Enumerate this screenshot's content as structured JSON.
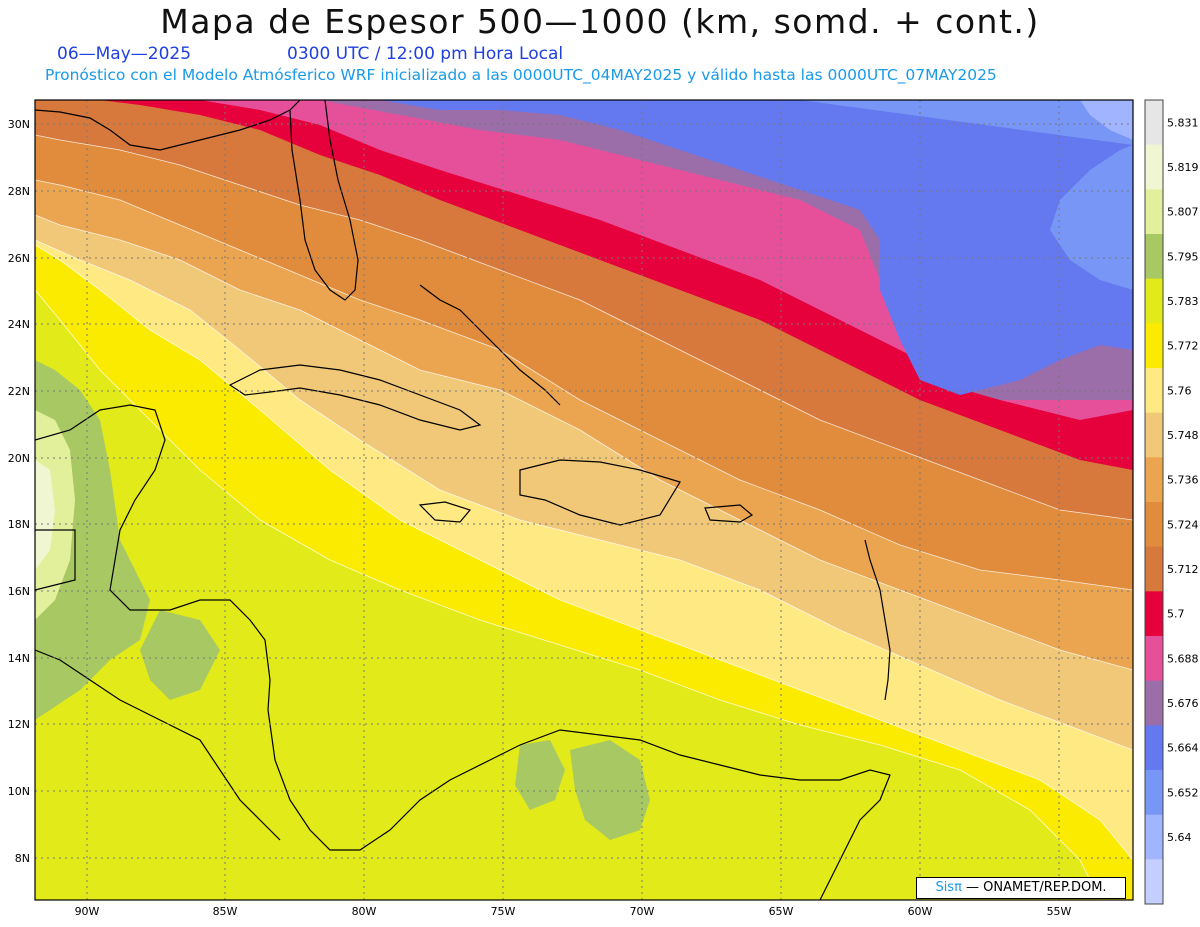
{
  "title": "Mapa de Espesor 500—1000 (km, somd. + cont.)",
  "date": "06—May—2025",
  "time": "0300 UTC / 12:00 pm Hora Local",
  "subtitle": "Pronóstico con el Modelo Atmósferico WRF inicializado a las 0000UTC_04MAY2025 y válido hasta las  0000UTC_07MAY2025",
  "credit": {
    "brand": "Sisπ",
    "text": " — ONAMET/REP.DOM."
  },
  "lon_labels": [
    "90W",
    "85W",
    "80W",
    "75W",
    "70W",
    "65W",
    "60W",
    "55W"
  ],
  "lat_labels": [
    "30N",
    "28N",
    "26N",
    "24N",
    "22N",
    "20N",
    "18N",
    "16N",
    "14N",
    "12N",
    "10N",
    "8N"
  ],
  "colorbar": {
    "labels": [
      "5.831",
      "5.819",
      "5.807",
      "5.795",
      "5.783",
      "5.772",
      "5.76",
      "5.748",
      "5.736",
      "5.724",
      "5.712",
      "5.7",
      "5.688",
      "5.676",
      "5.664",
      "5.652",
      "5.64"
    ],
    "colors": [
      "#e6e6e6",
      "#f0f6d2",
      "#e2f09c",
      "#a8c864",
      "#e2eb19",
      "#faeb00",
      "#ffe982",
      "#f0c878",
      "#eba550",
      "#e18c3c",
      "#d7783c",
      "#e6003c",
      "#e6509b",
      "#9b6eaa",
      "#6478f0",
      "#7896f5",
      "#a0b4ff",
      "#c4cfff"
    ]
  }
}
